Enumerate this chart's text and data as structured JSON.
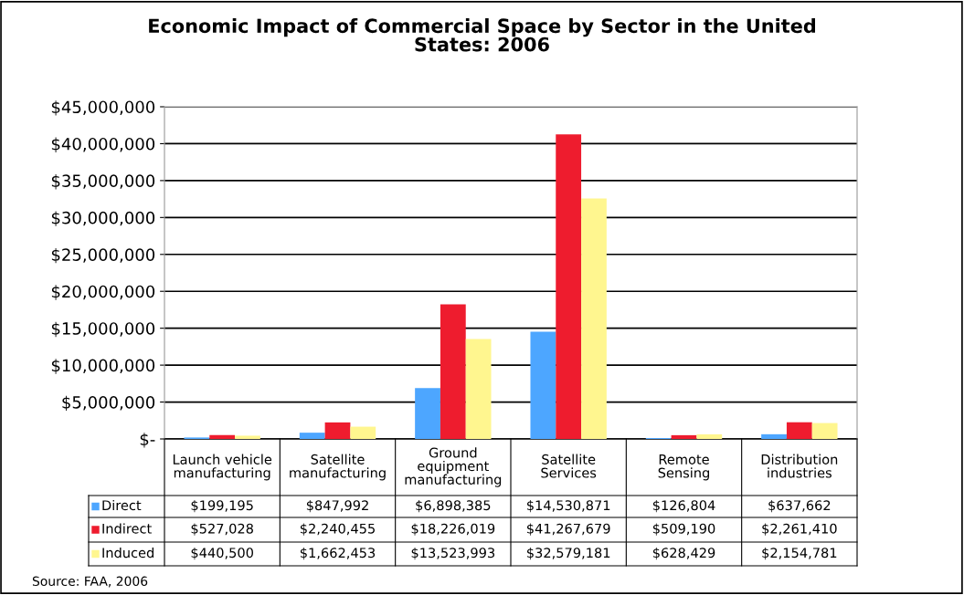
{
  "chart_data": {
    "type": "bar",
    "title": "Economic Impact of Commercial Space by Sector in the United\nStates: 2006",
    "categories": [
      "Launch vehicle\nmanufacturing",
      "Satellite\nmanufacturing",
      "Ground\nequipment\nmanufacturing",
      "Satellite\nServices",
      "Remote\nSensing",
      "Distribution\nindustries"
    ],
    "series": [
      {
        "name": "Direct",
        "color": "#4da6ff",
        "values": [
          199195,
          847992,
          6898385,
          14530871,
          126804,
          637662
        ],
        "value_labels": [
          "$199,195",
          "$847,992",
          "$6,898,385",
          "$14,530,871",
          "$126,804",
          "$637,662"
        ]
      },
      {
        "name": "Indirect",
        "color": "#ee1c2e",
        "values": [
          527028,
          2240455,
          18226019,
          41267679,
          509190,
          2261410
        ],
        "value_labels": [
          "$527,028",
          "$2,240,455",
          "$18,226,019",
          "$41,267,679",
          "$509,190",
          "$2,261,410"
        ]
      },
      {
        "name": "Induced",
        "color": "#fff68f",
        "values": [
          440500,
          1662453,
          13523993,
          32579181,
          628429,
          2154781
        ],
        "value_labels": [
          "$440,500",
          "$1,662,453",
          "$13,523,993",
          "$32,579,181",
          "$628,429",
          "$2,154,781"
        ]
      }
    ],
    "ylim": [
      0,
      45000000
    ],
    "yticks": [
      {
        "value": 0,
        "label": "$-"
      },
      {
        "value": 5000000,
        "label": "$5,000,000"
      },
      {
        "value": 10000000,
        "label": "$10,000,000"
      },
      {
        "value": 15000000,
        "label": "$15,000,000"
      },
      {
        "value": 20000000,
        "label": "$20,000,000"
      },
      {
        "value": 25000000,
        "label": "$25,000,000"
      },
      {
        "value": 30000000,
        "label": "$30,000,000"
      },
      {
        "value": 35000000,
        "label": "$35,000,000"
      },
      {
        "value": 40000000,
        "label": "$40,000,000"
      },
      {
        "value": 45000000,
        "label": "$45,000,000"
      }
    ],
    "grid": "y",
    "legend": "bottom",
    "annotations": [
      "Source: FAA, 2006"
    ]
  }
}
